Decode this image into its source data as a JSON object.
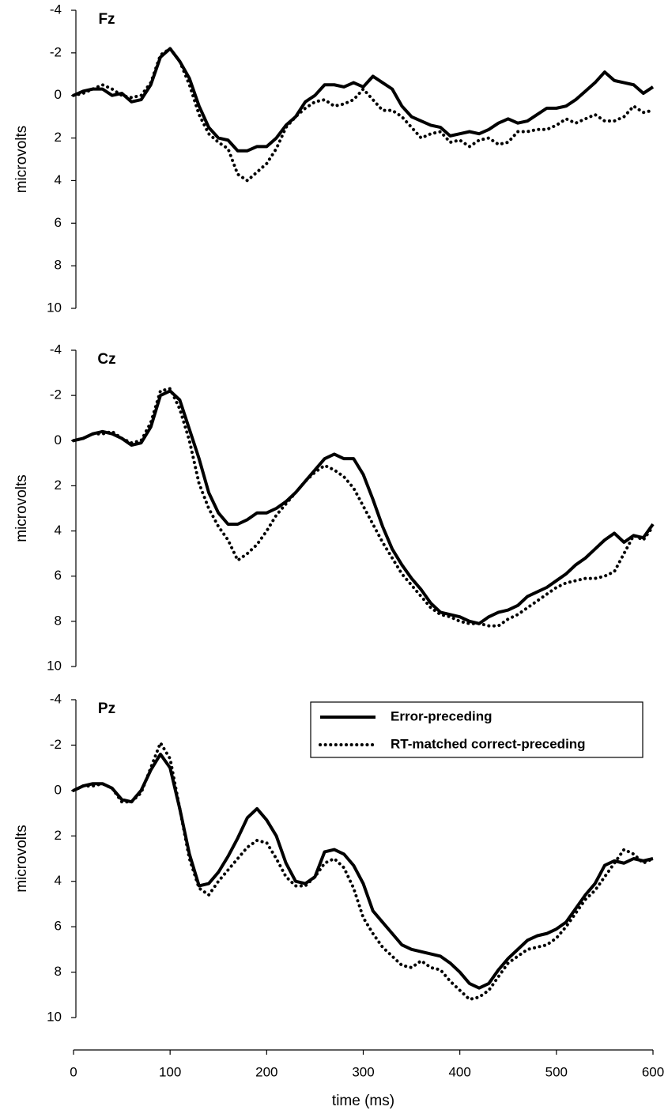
{
  "chart_data": [
    {
      "type": "line",
      "title": "Fz",
      "ylabel": "microvolts",
      "ylim": [
        -4,
        10
      ],
      "yticks": [
        -4,
        -2,
        0,
        2,
        4,
        6,
        8,
        10
      ],
      "invert_y": true,
      "xlim": [
        0,
        600
      ],
      "x": [
        0,
        10,
        20,
        30,
        40,
        50,
        60,
        70,
        80,
        90,
        100,
        110,
        120,
        130,
        140,
        150,
        160,
        170,
        180,
        190,
        200,
        210,
        220,
        230,
        240,
        250,
        260,
        270,
        280,
        290,
        300,
        310,
        320,
        330,
        340,
        350,
        360,
        370,
        380,
        390,
        400,
        410,
        420,
        430,
        440,
        450,
        460,
        470,
        480,
        490,
        500,
        510,
        520,
        530,
        540,
        550,
        560,
        570,
        580,
        590,
        600
      ],
      "series": [
        {
          "color": "#000000",
          "style": "solid",
          "values": [
            0,
            -0.2,
            -0.3,
            -0.3,
            0,
            -0.1,
            0.3,
            0.2,
            -0.5,
            -1.8,
            -2.2,
            -1.6,
            -0.8,
            0.5,
            1.5,
            2,
            2.1,
            2.6,
            2.6,
            2.4,
            2.4,
            2,
            1.4,
            1,
            0.3,
            0,
            -0.5,
            -0.5,
            -0.4,
            -0.6,
            -0.4,
            -0.9,
            -0.6,
            -0.3,
            0.5,
            1,
            1.2,
            1.4,
            1.5,
            1.9,
            1.8,
            1.7,
            1.8,
            1.6,
            1.3,
            1.1,
            1.3,
            1.2,
            0.9,
            0.6,
            0.6,
            0.5,
            0.2,
            -0.2,
            -0.6,
            -1.1,
            -0.7,
            -0.6,
            -0.5,
            -0.1,
            -0.4
          ]
        },
        {
          "color": "#000000",
          "style": "dotted",
          "values": [
            0,
            -0.1,
            -0.3,
            -0.5,
            -0.3,
            0,
            0.1,
            0,
            -0.6,
            -1.9,
            -2.2,
            -1.6,
            -0.5,
            0.9,
            1.8,
            2.2,
            2.5,
            3.7,
            4,
            3.6,
            3.2,
            2.5,
            1.5,
            1,
            0.6,
            0.3,
            0.2,
            0.5,
            0.4,
            0.2,
            -0.3,
            0.2,
            0.7,
            0.7,
            1,
            1.5,
            2,
            1.8,
            1.7,
            2.2,
            2.1,
            2.4,
            2.1,
            2,
            2.3,
            2.2,
            1.7,
            1.7,
            1.6,
            1.6,
            1.4,
            1.1,
            1.3,
            1.1,
            0.9,
            1.2,
            1.2,
            1,
            0.5,
            0.8,
            0.7
          ]
        }
      ]
    },
    {
      "type": "line",
      "title": "Cz",
      "ylabel": "microvolts",
      "ylim": [
        -4,
        10
      ],
      "yticks": [
        -4,
        -2,
        0,
        2,
        4,
        6,
        8,
        10
      ],
      "invert_y": true,
      "xlim": [
        0,
        600
      ],
      "x": [
        0,
        10,
        20,
        30,
        40,
        50,
        60,
        70,
        80,
        90,
        100,
        110,
        120,
        130,
        140,
        150,
        160,
        170,
        180,
        190,
        200,
        210,
        220,
        230,
        240,
        250,
        260,
        270,
        280,
        290,
        300,
        310,
        320,
        330,
        340,
        350,
        360,
        370,
        380,
        390,
        400,
        410,
        420,
        430,
        440,
        450,
        460,
        470,
        480,
        490,
        500,
        510,
        520,
        530,
        540,
        550,
        560,
        570,
        580,
        590,
        600
      ],
      "series": [
        {
          "color": "#000000",
          "style": "solid",
          "values": [
            0,
            -0.1,
            -0.3,
            -0.4,
            -0.3,
            -0.1,
            0.2,
            0.1,
            -0.6,
            -2,
            -2.2,
            -1.8,
            -0.5,
            0.8,
            2.3,
            3.2,
            3.7,
            3.7,
            3.5,
            3.2,
            3.2,
            3,
            2.7,
            2.3,
            1.8,
            1.3,
            0.8,
            0.6,
            0.8,
            0.8,
            1.5,
            2.6,
            3.8,
            4.8,
            5.5,
            6.1,
            6.6,
            7.2,
            7.6,
            7.7,
            7.8,
            8,
            8.1,
            7.8,
            7.6,
            7.5,
            7.3,
            6.9,
            6.7,
            6.5,
            6.2,
            5.9,
            5.5,
            5.2,
            4.8,
            4.4,
            4.1,
            4.5,
            4.2,
            4.3,
            3.7
          ]
        },
        {
          "color": "#000000",
          "style": "dotted",
          "values": [
            0,
            -0.1,
            -0.3,
            -0.3,
            -0.4,
            -0.1,
            0.1,
            0,
            -0.8,
            -2.2,
            -2.3,
            -1.4,
            0,
            1.9,
            3,
            3.8,
            4.4,
            5.3,
            5,
            4.6,
            4,
            3.3,
            2.8,
            2.3,
            1.8,
            1.4,
            1.1,
            1.3,
            1.6,
            2.1,
            2.9,
            3.7,
            4.5,
            5.2,
            5.9,
            6.4,
            6.9,
            7.4,
            7.7,
            7.8,
            8,
            8.1,
            8.1,
            8.2,
            8.2,
            7.9,
            7.7,
            7.4,
            7.1,
            6.8,
            6.5,
            6.3,
            6.2,
            6.1,
            6.1,
            6,
            5.8,
            5,
            4.2,
            4.4,
            3.8
          ]
        }
      ]
    },
    {
      "type": "line",
      "title": "Pz",
      "ylabel": "microvolts",
      "ylim": [
        -4,
        10
      ],
      "yticks": [
        -4,
        -2,
        0,
        2,
        4,
        6,
        8,
        10
      ],
      "invert_y": true,
      "xlim": [
        0,
        600
      ],
      "xticks": [
        0,
        100,
        200,
        300,
        400,
        500,
        600
      ],
      "xlabel": "time (ms)",
      "legend": "upper right",
      "x": [
        0,
        10,
        20,
        30,
        40,
        50,
        60,
        70,
        80,
        90,
        100,
        110,
        120,
        130,
        140,
        150,
        160,
        170,
        180,
        190,
        200,
        210,
        220,
        230,
        240,
        250,
        260,
        270,
        280,
        290,
        300,
        310,
        320,
        330,
        340,
        350,
        360,
        370,
        380,
        390,
        400,
        410,
        420,
        430,
        440,
        450,
        460,
        470,
        480,
        490,
        500,
        510,
        520,
        530,
        540,
        550,
        560,
        570,
        580,
        590,
        600
      ],
      "series": [
        {
          "name": "Error-preceding",
          "color": "#000000",
          "style": "solid",
          "values": [
            0,
            -0.2,
            -0.3,
            -0.3,
            -0.1,
            0.4,
            0.5,
            0,
            -0.9,
            -1.6,
            -1,
            0.8,
            2.8,
            4.2,
            4.1,
            3.6,
            2.9,
            2.1,
            1.2,
            0.8,
            1.3,
            2,
            3.2,
            4,
            4.1,
            3.8,
            2.7,
            2.6,
            2.8,
            3.3,
            4.1,
            5.3,
            5.8,
            6.3,
            6.8,
            7,
            7.1,
            7.2,
            7.3,
            7.6,
            8,
            8.5,
            8.7,
            8.5,
            7.9,
            7.4,
            7,
            6.6,
            6.4,
            6.3,
            6.1,
            5.8,
            5.2,
            4.6,
            4.1,
            3.3,
            3.1,
            3.2,
            3,
            3.1,
            3
          ]
        },
        {
          "name": "RT-matched correct-preceding",
          "color": "#000000",
          "style": "dotted",
          "values": [
            0,
            -0.2,
            -0.2,
            -0.3,
            -0.1,
            0.5,
            0.5,
            0.1,
            -1,
            -2.1,
            -1.4,
            0.8,
            3,
            4.3,
            4.6,
            4,
            3.5,
            3,
            2.5,
            2.2,
            2.3,
            3,
            3.8,
            4.2,
            4.2,
            3.8,
            3.2,
            3,
            3.4,
            4.3,
            5.6,
            6.3,
            6.9,
            7.3,
            7.7,
            7.8,
            7.5,
            7.8,
            7.9,
            8.4,
            8.8,
            9.2,
            9.1,
            8.8,
            8.2,
            7.6,
            7.3,
            7,
            6.9,
            6.8,
            6.5,
            6,
            5.4,
            4.8,
            4.4,
            3.8,
            3.2,
            2.6,
            2.8,
            3.2,
            3
          ]
        }
      ]
    }
  ]
}
